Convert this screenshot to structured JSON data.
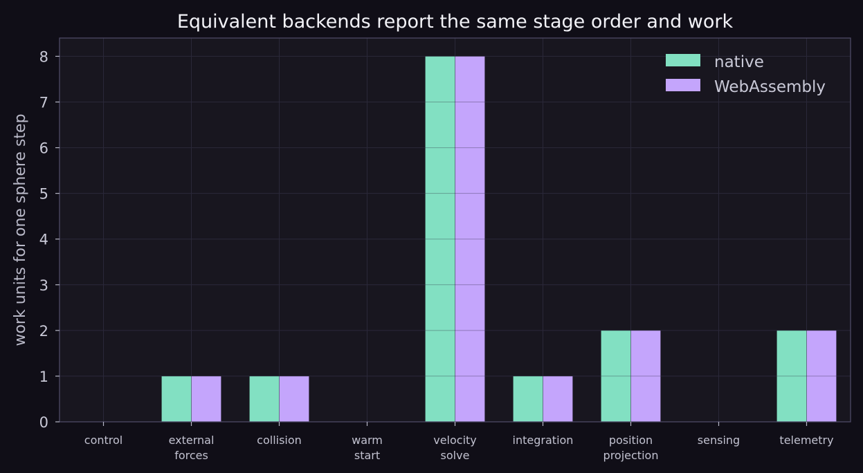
{
  "chart_data": {
    "type": "bar",
    "title": "Equivalent backends report the same stage order and work",
    "xlabel": "",
    "ylabel": "work units for one sphere step",
    "categories": [
      [
        "control"
      ],
      [
        "external",
        "forces"
      ],
      [
        "collision"
      ],
      [
        "warm",
        "start"
      ],
      [
        "velocity",
        "solve"
      ],
      [
        "integration"
      ],
      [
        "position",
        "projection"
      ],
      [
        "sensing"
      ],
      [
        "telemetry"
      ]
    ],
    "series": [
      {
        "name": "native",
        "values": [
          0,
          1,
          1,
          0,
          8,
          1,
          2,
          0,
          2
        ],
        "color": "#82e0c2"
      },
      {
        "name": "WebAssembly",
        "values": [
          0,
          1,
          1,
          0,
          8,
          1,
          2,
          0,
          2
        ],
        "color": "#c4a5fc"
      }
    ],
    "ylim": [
      0,
      8.4
    ],
    "yticks": [
      0,
      1,
      2,
      3,
      4,
      5,
      6,
      7,
      8
    ],
    "grid": true,
    "legend_position": "top-right"
  },
  "colors": {
    "page_background": "#100e17",
    "plot_background": "#18161f",
    "grid": "#2c2a3a",
    "axis": "#4e4a66"
  }
}
